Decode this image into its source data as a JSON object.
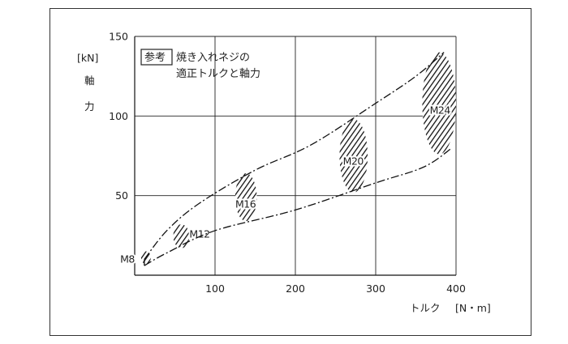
{
  "chart_data": {
    "type": "area",
    "xlabel": "トルク",
    "x_unit": "[N・m]",
    "ylabel": [
      "軸",
      "力"
    ],
    "y_unit": "[kN]",
    "xlim": [
      0,
      400
    ],
    "ylim": [
      0,
      150
    ],
    "x_ticks": [
      "100",
      "200",
      "300",
      "400"
    ],
    "y_ticks": [
      "50",
      "100",
      "150"
    ],
    "grid": true,
    "annotation": {
      "badge": "参考",
      "line1": "焼き入れネジの",
      "line2": "適正トルクと軸力"
    },
    "envelope_upper": [
      {
        "x": 12,
        "y": 10
      },
      {
        "x": 40,
        "y": 28
      },
      {
        "x": 80,
        "y": 45
      },
      {
        "x": 150,
        "y": 66
      },
      {
        "x": 220,
        "y": 82
      },
      {
        "x": 300,
        "y": 108
      },
      {
        "x": 350,
        "y": 125
      },
      {
        "x": 385,
        "y": 140
      }
    ],
    "envelope_lower": [
      {
        "x": 12,
        "y": 6
      },
      {
        "x": 40,
        "y": 14
      },
      {
        "x": 100,
        "y": 28
      },
      {
        "x": 200,
        "y": 41
      },
      {
        "x": 300,
        "y": 58
      },
      {
        "x": 360,
        "y": 68
      },
      {
        "x": 395,
        "y": 80
      }
    ],
    "regions": [
      {
        "label": "M8",
        "x_min": 8,
        "x_max": 20,
        "y_min": 7,
        "y_max": 15
      },
      {
        "label": "M12",
        "x_min": 48,
        "x_max": 68,
        "y_min": 17,
        "y_max": 32
      },
      {
        "label": "M16",
        "x_min": 125,
        "x_max": 152,
        "y_min": 34,
        "y_max": 64
      },
      {
        "label": "M20",
        "x_min": 255,
        "x_max": 290,
        "y_min": 52,
        "y_max": 98
      },
      {
        "label": "M24",
        "x_min": 358,
        "x_max": 400,
        "y_min": 76,
        "y_max": 140
      }
    ]
  }
}
